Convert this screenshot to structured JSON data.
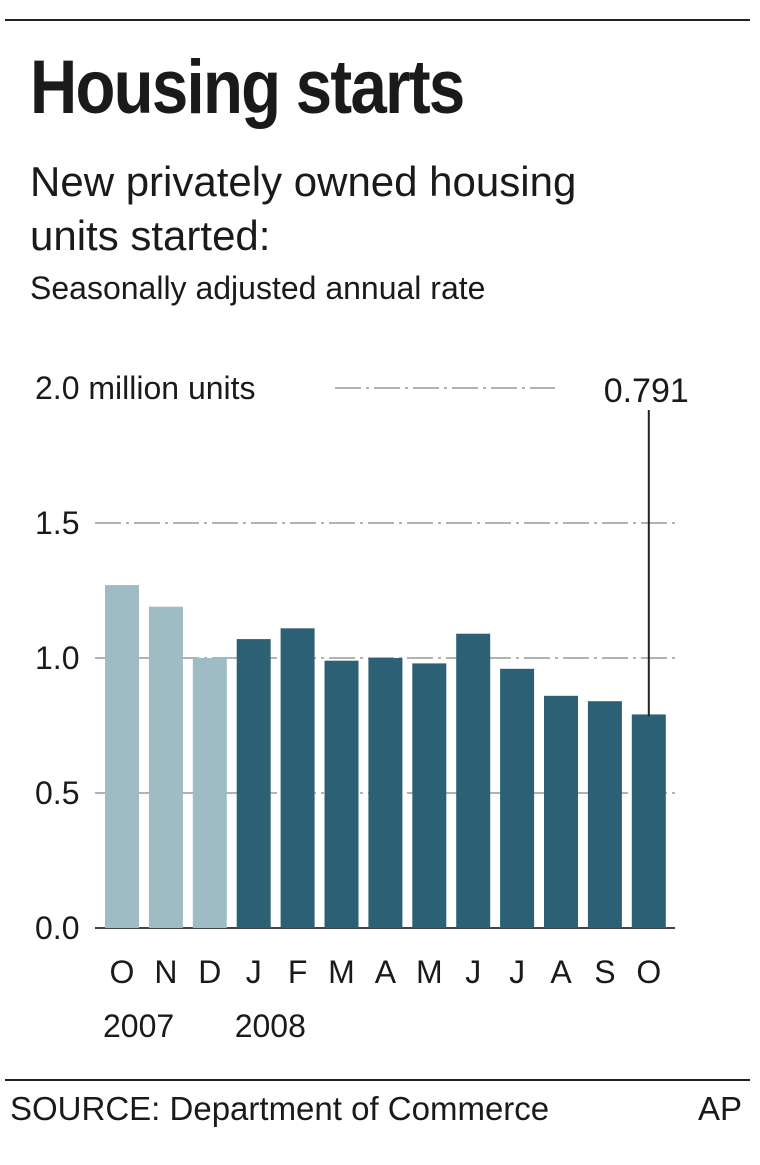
{
  "chart_data": {
    "type": "bar",
    "title": "Housing starts",
    "subtitle": "New privately owned housing units started:",
    "note": "Seasonally adjusted annual rate",
    "categories": [
      "O",
      "N",
      "D",
      "J",
      "F",
      "M",
      "A",
      "M",
      "J",
      "J",
      "A",
      "S",
      "O"
    ],
    "year_labels": [
      {
        "label": "2007",
        "at_index": 0
      },
      {
        "label": "2008",
        "at_index": 3
      }
    ],
    "values": [
      1.27,
      1.19,
      1.0,
      1.07,
      1.11,
      0.99,
      1.0,
      0.98,
      1.09,
      0.96,
      0.86,
      0.84,
      0.791
    ],
    "bar_colors": {
      "2007": "#9fbcc5",
      "2008": "#2c6175"
    },
    "highlight_years": [
      "2007",
      "2007",
      "2007",
      "2008",
      "2008",
      "2008",
      "2008",
      "2008",
      "2008",
      "2008",
      "2008",
      "2008",
      "2008"
    ],
    "ylim": [
      0,
      2.0
    ],
    "yticks": [
      {
        "value": 0.0,
        "label": "0.0"
      },
      {
        "value": 0.5,
        "label": "0.5"
      },
      {
        "value": 1.0,
        "label": "1.0"
      },
      {
        "value": 1.5,
        "label": "1.5"
      },
      {
        "value": 2.0,
        "label": "2.0 million units"
      }
    ],
    "grid": true,
    "annotation": {
      "label": "0.791",
      "index": 12
    },
    "source": "SOURCE: Department of Commerce",
    "credit": "AP"
  }
}
